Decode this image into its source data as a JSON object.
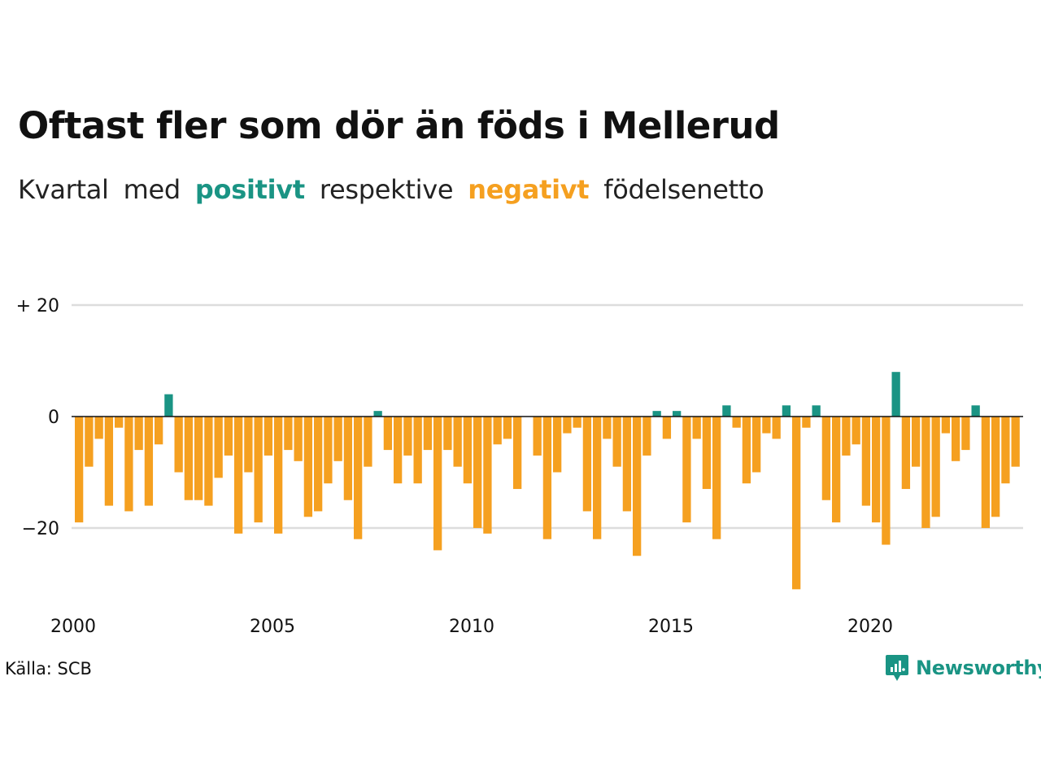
{
  "title": "Oftast fler som dör än föds i Mellerud",
  "subtitle": {
    "w1": "Kvartal",
    "w2": "med",
    "positive": "positivt",
    "w3": "respektive",
    "negative": "negativt",
    "w4": "födelsenetto"
  },
  "source": "Källa: SCB",
  "logo": {
    "text": "Newsworthy",
    "icon": "newsworthy-chart-logo-icon"
  },
  "colors": {
    "positive": "#1a9484",
    "negative": "#f5a020",
    "grid": "#dddddd",
    "zero": "#111111"
  },
  "chart_data": {
    "type": "bar",
    "title": "Oftast fler som dör än föds i Mellerud",
    "xlabel": "",
    "ylabel": "",
    "ylim": [
      -31,
      20
    ],
    "yticks": [
      {
        "value": 20,
        "label": "+ 20"
      },
      {
        "value": 0,
        "label": "0"
      },
      {
        "value": -20,
        "label": "−20"
      }
    ],
    "xticks": [
      {
        "value": 2000,
        "label": "2000"
      },
      {
        "value": 2005,
        "label": "2005"
      },
      {
        "value": 2010,
        "label": "2010"
      },
      {
        "value": 2015,
        "label": "2015"
      },
      {
        "value": 2020,
        "label": "2020"
      }
    ],
    "grid": true,
    "start_year": 2000,
    "period": "quarter",
    "values": [
      -19,
      -9,
      -4,
      -16,
      -2,
      -17,
      -6,
      -16,
      -5,
      4,
      -10,
      -15,
      -15,
      -16,
      -11,
      -7,
      -21,
      -10,
      -19,
      -7,
      -21,
      -6,
      -8,
      -18,
      -17,
      -12,
      -8,
      -15,
      -22,
      -9,
      1,
      -6,
      -12,
      -7,
      -12,
      -6,
      -24,
      -6,
      -9,
      -12,
      -20,
      -21,
      -5,
      -4,
      -13,
      0,
      -7,
      -22,
      -10,
      -3,
      -2,
      -17,
      -22,
      -4,
      -9,
      -17,
      -25,
      -7,
      1,
      -4,
      1,
      -19,
      -4,
      -13,
      -22,
      2,
      -2,
      -12,
      -10,
      -3,
      -4,
      2,
      -31,
      -2,
      2,
      -15,
      -19,
      -7,
      -5,
      -16,
      -19,
      -23,
      8,
      -13,
      -9,
      -20,
      -18,
      -3,
      -8,
      -6,
      2,
      -20,
      -18,
      -12,
      -9
    ]
  }
}
